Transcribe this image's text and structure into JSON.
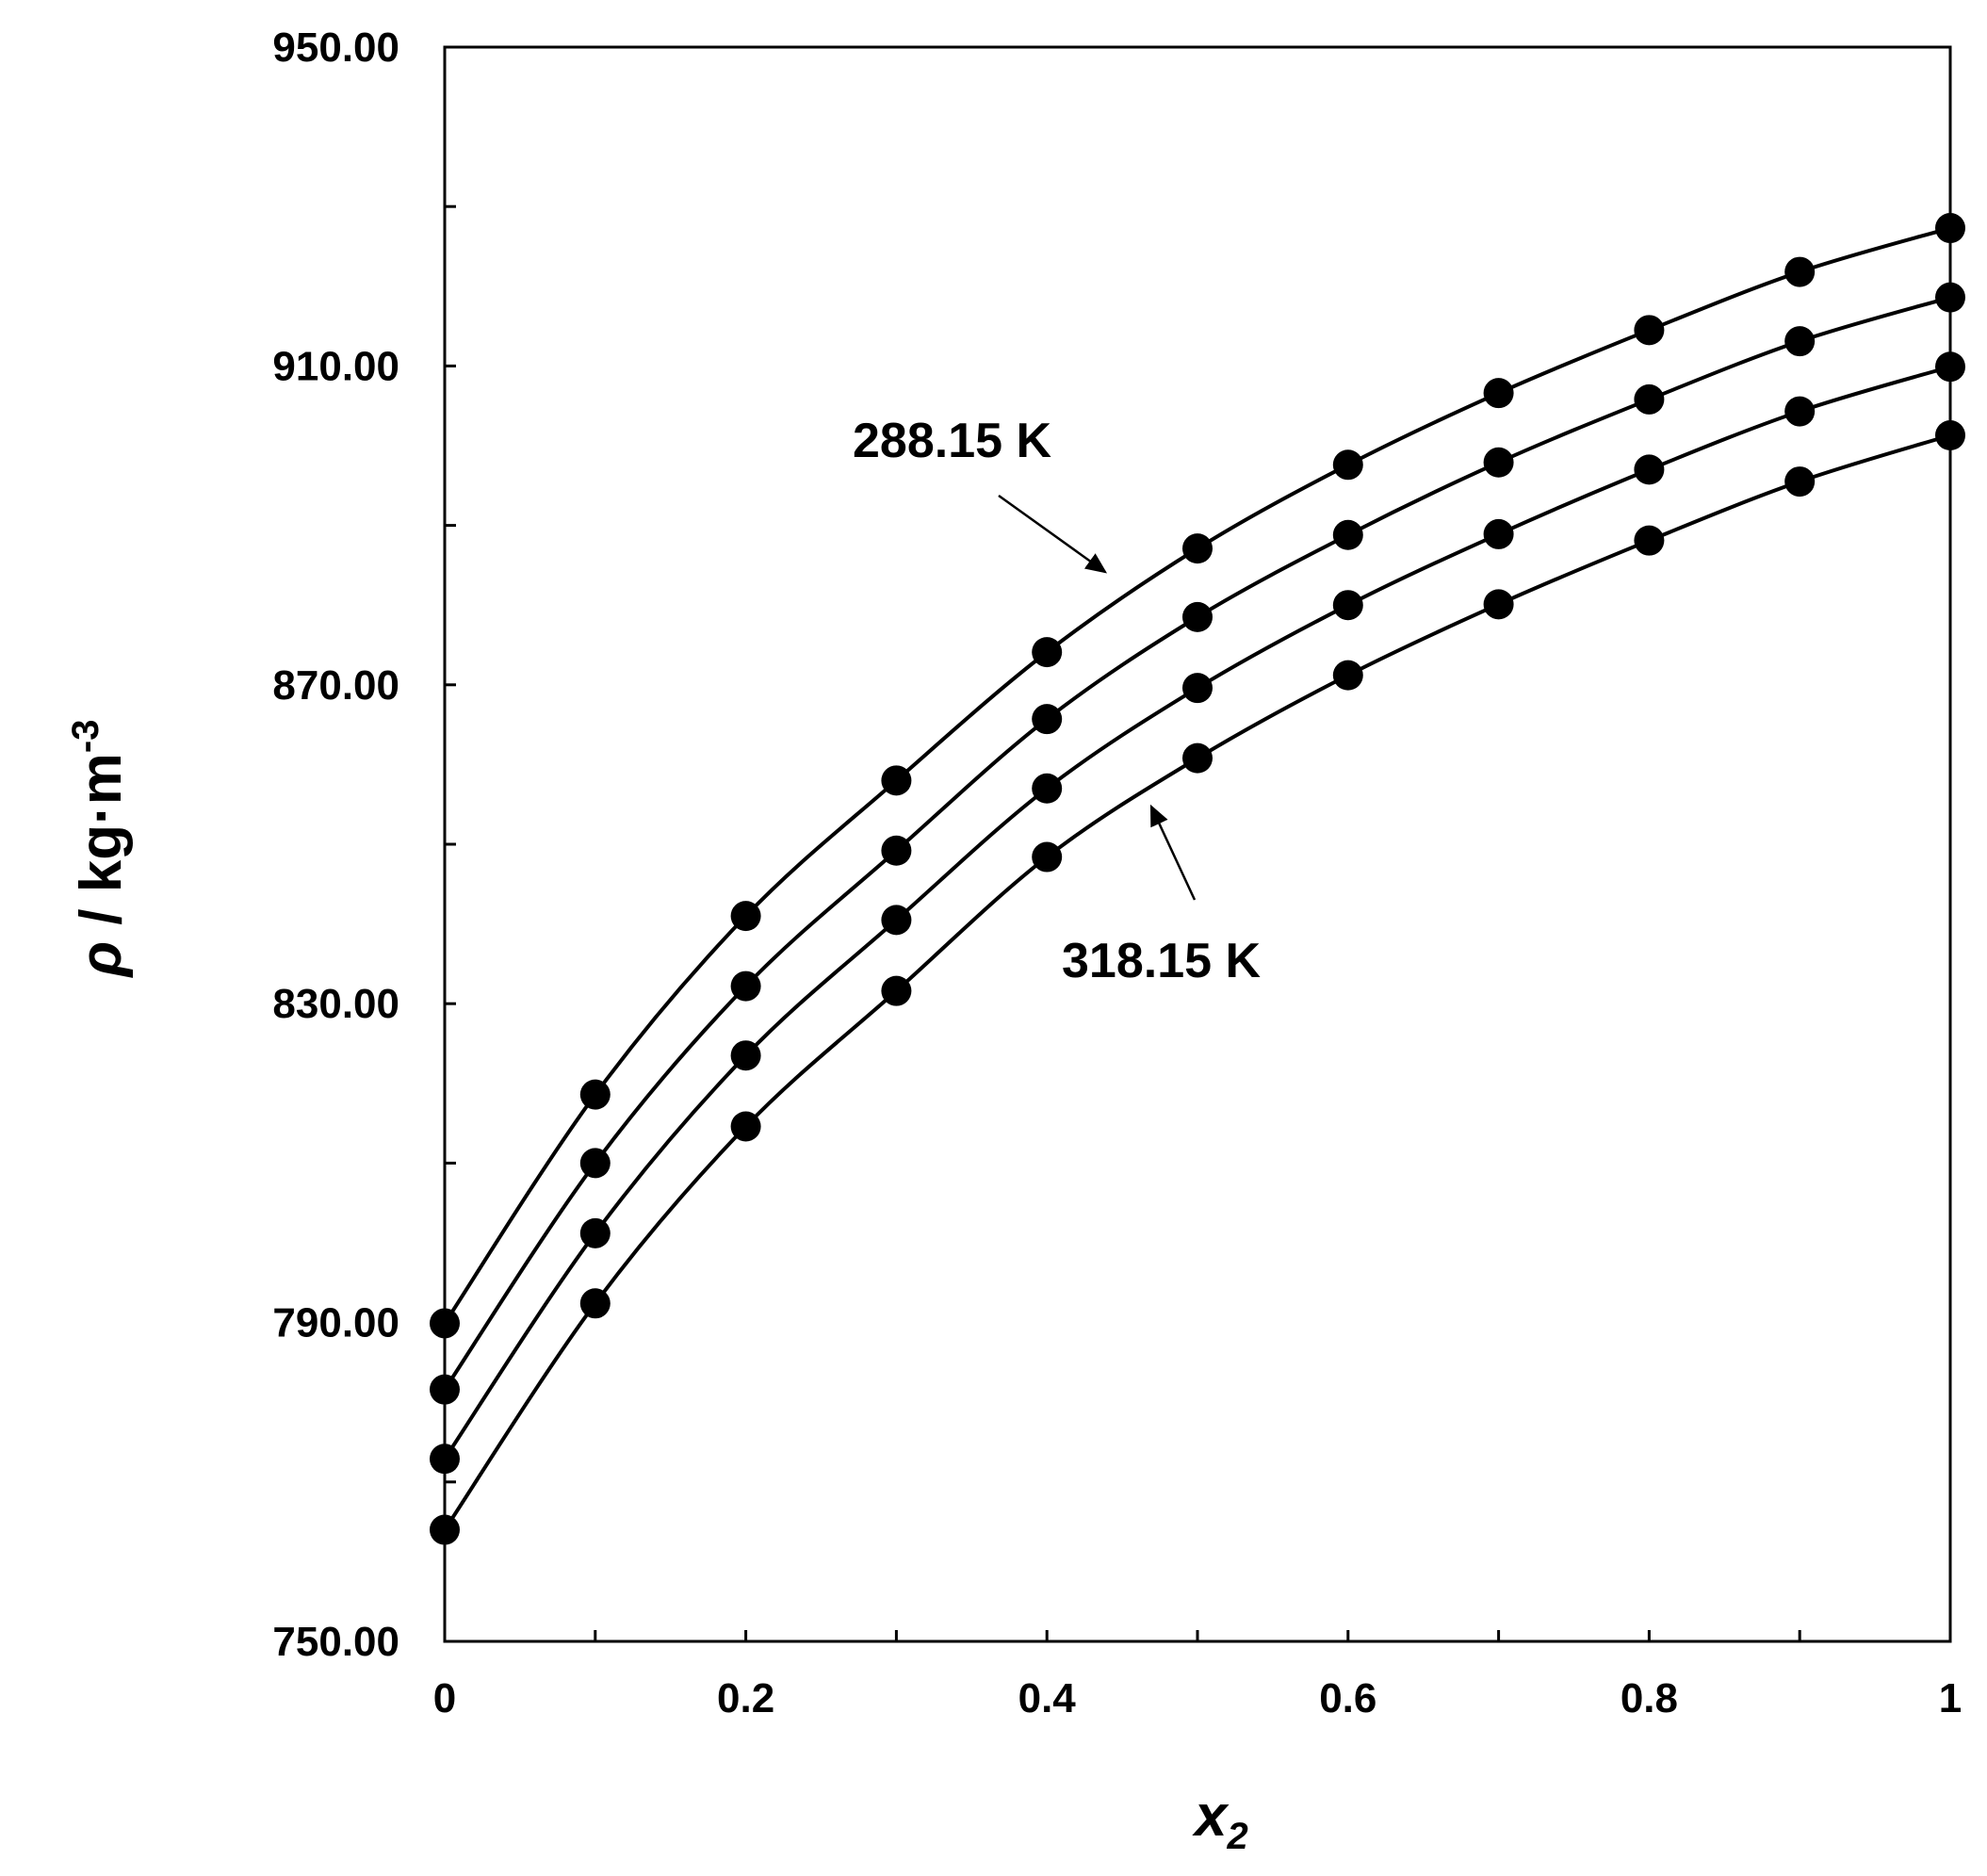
{
  "chart_data": {
    "type": "scatter",
    "xlabel_main": "x",
    "xlabel_sub": "2",
    "ylabel_symbol": "ρ",
    "ylabel_unit": " / kg·m",
    "ylabel_exp": "-3",
    "xlim": [
      0,
      1
    ],
    "ylim": [
      750,
      950
    ],
    "x_ticks": [
      0,
      0.1,
      0.2,
      0.3,
      0.4,
      0.5,
      0.6,
      0.7,
      0.8,
      0.9,
      1
    ],
    "x_tick_labels": [
      "0",
      "0.2",
      "0.4",
      "0.6",
      "0.8",
      "1"
    ],
    "x_tick_label_values": [
      0,
      0.2,
      0.4,
      0.6,
      0.8,
      1
    ],
    "y_ticks": [
      750,
      770,
      790,
      810,
      830,
      850,
      870,
      890,
      910,
      930,
      950
    ],
    "y_tick_labels": [
      "750.00",
      "790.00",
      "830.00",
      "870.00",
      "910.00",
      "950.00"
    ],
    "y_tick_label_values": [
      750,
      790,
      830,
      870,
      910,
      950
    ],
    "x": [
      0,
      0.1,
      0.2,
      0.3,
      0.4,
      0.5,
      0.6,
      0.7,
      0.8,
      0.9,
      1
    ],
    "series": [
      {
        "values": [
          789.9,
          818.6,
          841.0,
          858.0,
          874.1,
          887.1,
          897.6,
          906.6,
          914.5,
          921.8,
          927.3
        ]
      },
      {
        "values": [
          781.6,
          810.0,
          832.2,
          849.2,
          865.7,
          878.5,
          888.8,
          897.9,
          905.8,
          913.1,
          918.6
        ]
      },
      {
        "values": [
          772.9,
          801.2,
          823.5,
          840.5,
          857.0,
          869.6,
          880.0,
          888.9,
          897.0,
          904.3,
          909.9
        ]
      },
      {
        "values": [
          764.0,
          792.4,
          814.6,
          831.6,
          848.4,
          860.8,
          871.2,
          880.1,
          888.1,
          895.5,
          901.3
        ]
      }
    ],
    "annotations": [
      {
        "text": "288.15 K"
      },
      {
        "text": "318.15 K"
      }
    ],
    "grid": false,
    "legend": "none"
  }
}
